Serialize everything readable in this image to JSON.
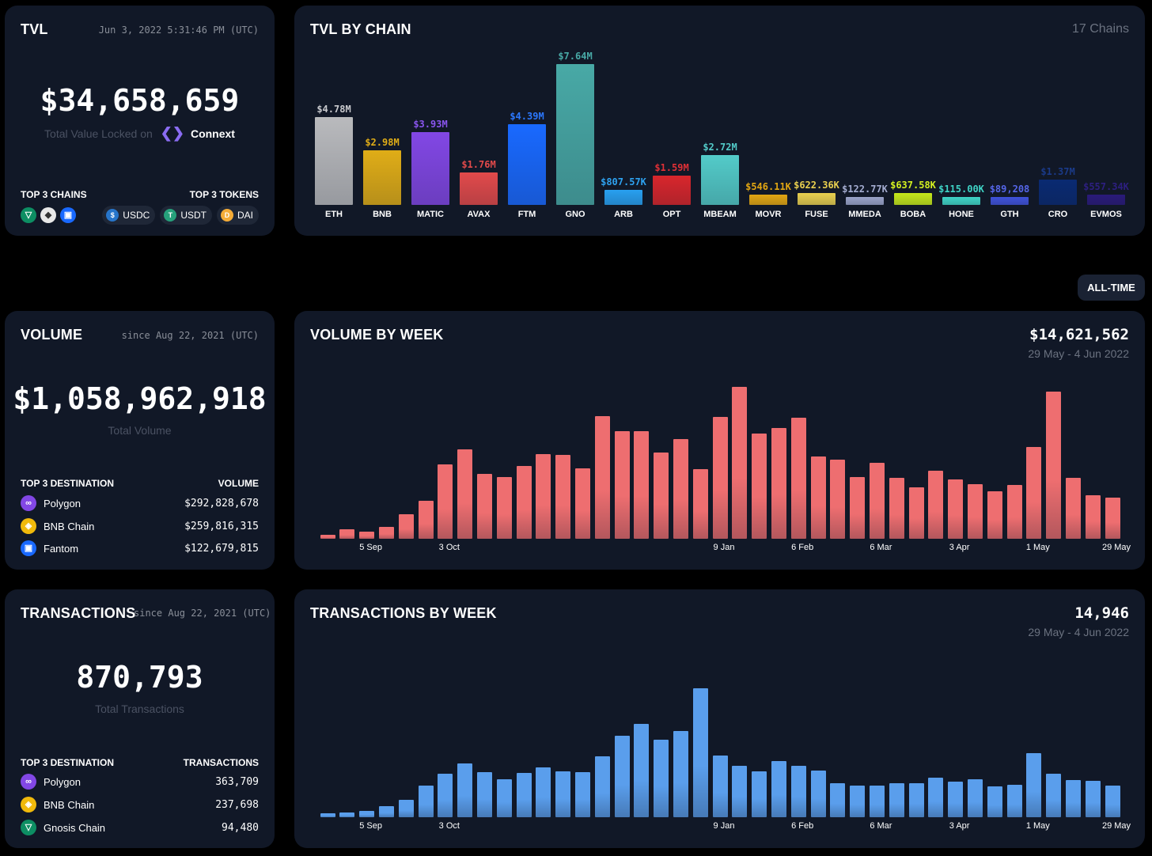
{
  "tvl": {
    "title": "TVL",
    "timestamp": "Jun 3, 2022 5:31:46 PM (UTC)",
    "total": "$34,658,659",
    "caption": "Total Value Locked on",
    "brand": "Connext",
    "top_chains_label": "TOP 3 CHAINS",
    "top_tokens_label": "TOP 3 TOKENS",
    "top_chains": [
      {
        "icon": "gnosis-icon",
        "color": "#0d8e63"
      },
      {
        "icon": "ethereum-icon",
        "color": "#e8e8e8"
      },
      {
        "icon": "fantom-icon",
        "color": "#1969ff"
      }
    ],
    "top_tokens": [
      {
        "label": "USDC",
        "icon": "usdc-icon",
        "color": "#2775ca"
      },
      {
        "label": "USDT",
        "icon": "usdt-icon",
        "color": "#26a17b"
      },
      {
        "label": "DAI",
        "icon": "dai-icon",
        "color": "#f5ac37"
      }
    ]
  },
  "tvl_chart": {
    "title": "TVL BY CHAIN",
    "count": "17 Chains"
  },
  "range_button": "ALL-TIME",
  "volume": {
    "title": "VOLUME",
    "since": "since Aug 22, 2021 (UTC)",
    "total": "$1,058,962,918",
    "caption": "Total Volume",
    "col1": "TOP 3 DESTINATION",
    "col2": "VOLUME",
    "rows": [
      {
        "name": "Polygon",
        "value": "$292,828,678",
        "color": "#8247e5"
      },
      {
        "name": "BNB Chain",
        "value": "$259,816,315",
        "color": "#f0b90b"
      },
      {
        "name": "Fantom",
        "value": "$122,679,815",
        "color": "#1969ff"
      }
    ]
  },
  "volume_chart": {
    "title": "VOLUME BY WEEK",
    "latest": "$14,621,562",
    "range": "29 May - 4 Jun 2022"
  },
  "transactions": {
    "title": "TRANSACTIONS",
    "since": "since Aug 22, 2021 (UTC)",
    "total": "870,793",
    "caption": "Total Transactions",
    "col1": "TOP 3 DESTINATION",
    "col2": "TRANSACTIONS",
    "rows": [
      {
        "name": "Polygon",
        "value": "363,709",
        "color": "#8247e5"
      },
      {
        "name": "BNB Chain",
        "value": "237,698",
        "color": "#f0b90b"
      },
      {
        "name": "Gnosis Chain",
        "value": "94,480",
        "color": "#0d8e63"
      }
    ]
  },
  "tx_chart": {
    "title": "TRANSACTIONS BY WEEK",
    "latest": "14,946",
    "range": "29 May - 4 Jun 2022"
  },
  "chart_data": [
    {
      "type": "bar",
      "title": "TVL BY CHAIN",
      "ylim": [
        0,
        7640000
      ],
      "categories": [
        "ETH",
        "BNB",
        "MATIC",
        "AVAX",
        "FTM",
        "GNO",
        "ARB",
        "OPT",
        "MBEAM",
        "MOVR",
        "FUSE",
        "MMEDA",
        "BOBA",
        "HONE",
        "GTH",
        "CRO",
        "EVMOS"
      ],
      "values": [
        4780000,
        2980000,
        3930000,
        1760000,
        4390000,
        7640000,
        807570,
        1590000,
        2720000,
        546110,
        622360,
        122770,
        637580,
        115000,
        89208,
        1370000,
        557340
      ],
      "labels": [
        "$4.78M",
        "$2.98M",
        "$3.93M",
        "$1.76M",
        "$4.39M",
        "$7.64M",
        "$807.57K",
        "$1.59M",
        "$2.72M",
        "$546.11K",
        "$622.36K",
        "$122.77K",
        "$637.58K",
        "$115.00K",
        "$89,208",
        "$1.37M",
        "$557.34K"
      ],
      "colors": [
        "#b9babd",
        "#e0ad17",
        "#8247e5",
        "#e24a4b",
        "#1969ff",
        "#48a9a6",
        "#28a0f0",
        "#d8262c",
        "#53cbc9",
        "#e2a612",
        "#e8cf4f",
        "#9aa3c9",
        "#c5e81a",
        "#3fd4c6",
        "#3f52d9",
        "#0a2a72",
        "#2a1a7a"
      ],
      "label_colors": [
        "#c9cace",
        "#e0ad17",
        "#8a55ee",
        "#e24a4b",
        "#2c78ff",
        "#48a9a6",
        "#2ea2f0",
        "#e03036",
        "#53cbc9",
        "#e2a612",
        "#e8cf4f",
        "#a4acd0",
        "#d4f020",
        "#3fd4c6",
        "#5566e8",
        "#1a3a88",
        "#2d1f80"
      ]
    },
    {
      "type": "bar",
      "title": "VOLUME BY WEEK",
      "ylim": [
        0,
        54300000
      ],
      "color": "#ee6e70",
      "x_ticks": [
        {
          "index": 2,
          "label": "5 Sep"
        },
        {
          "index": 6,
          "label": "3 Oct"
        },
        {
          "index": 20,
          "label": "9 Jan"
        },
        {
          "index": 24,
          "label": "6 Feb"
        },
        {
          "index": 28,
          "label": "6 Mar"
        },
        {
          "index": 32,
          "label": "3 Apr"
        },
        {
          "index": 36,
          "label": "1 May"
        },
        {
          "index": 40,
          "label": "29 May"
        }
      ],
      "values": [
        1400000,
        3300000,
        2600000,
        4200000,
        8800000,
        13500000,
        26600000,
        31900000,
        23100000,
        22100000,
        26000000,
        30300000,
        30000000,
        25100000,
        43800000,
        38400000,
        38500000,
        30900000,
        35600000,
        24800000,
        43600000,
        54300000,
        37500000,
        39600000,
        43400000,
        29400000,
        28300000,
        22100000,
        27100000,
        21900000,
        18400000,
        24200000,
        21100000,
        19400000,
        17000000,
        19300000,
        32800000,
        52500000,
        21800000,
        15600000,
        14621562
      ]
    },
    {
      "type": "bar",
      "title": "TRANSACTIONS BY WEEK",
      "ylim": [
        0,
        72400
      ],
      "color": "#5a9eec",
      "x_ticks": [
        {
          "index": 2,
          "label": "5 Sep"
        },
        {
          "index": 6,
          "label": "3 Oct"
        },
        {
          "index": 20,
          "label": "9 Jan"
        },
        {
          "index": 24,
          "label": "6 Feb"
        },
        {
          "index": 28,
          "label": "6 Mar"
        },
        {
          "index": 32,
          "label": "3 Apr"
        },
        {
          "index": 36,
          "label": "1 May"
        },
        {
          "index": 40,
          "label": "29 May"
        }
      ],
      "values": [
        1880,
        2150,
        2900,
        5160,
        8170,
        14950,
        20820,
        25720,
        21350,
        17960,
        21080,
        23720,
        21950,
        21350,
        28990,
        38780,
        44320,
        36790,
        41150,
        61480,
        29480,
        24590,
        21840,
        26730,
        24470,
        22330,
        16190,
        15060,
        15170,
        16190,
        16300,
        18710,
        16940,
        18070,
        14570,
        15320,
        30500,
        20820,
        17700,
        17210,
        14946
      ]
    }
  ]
}
